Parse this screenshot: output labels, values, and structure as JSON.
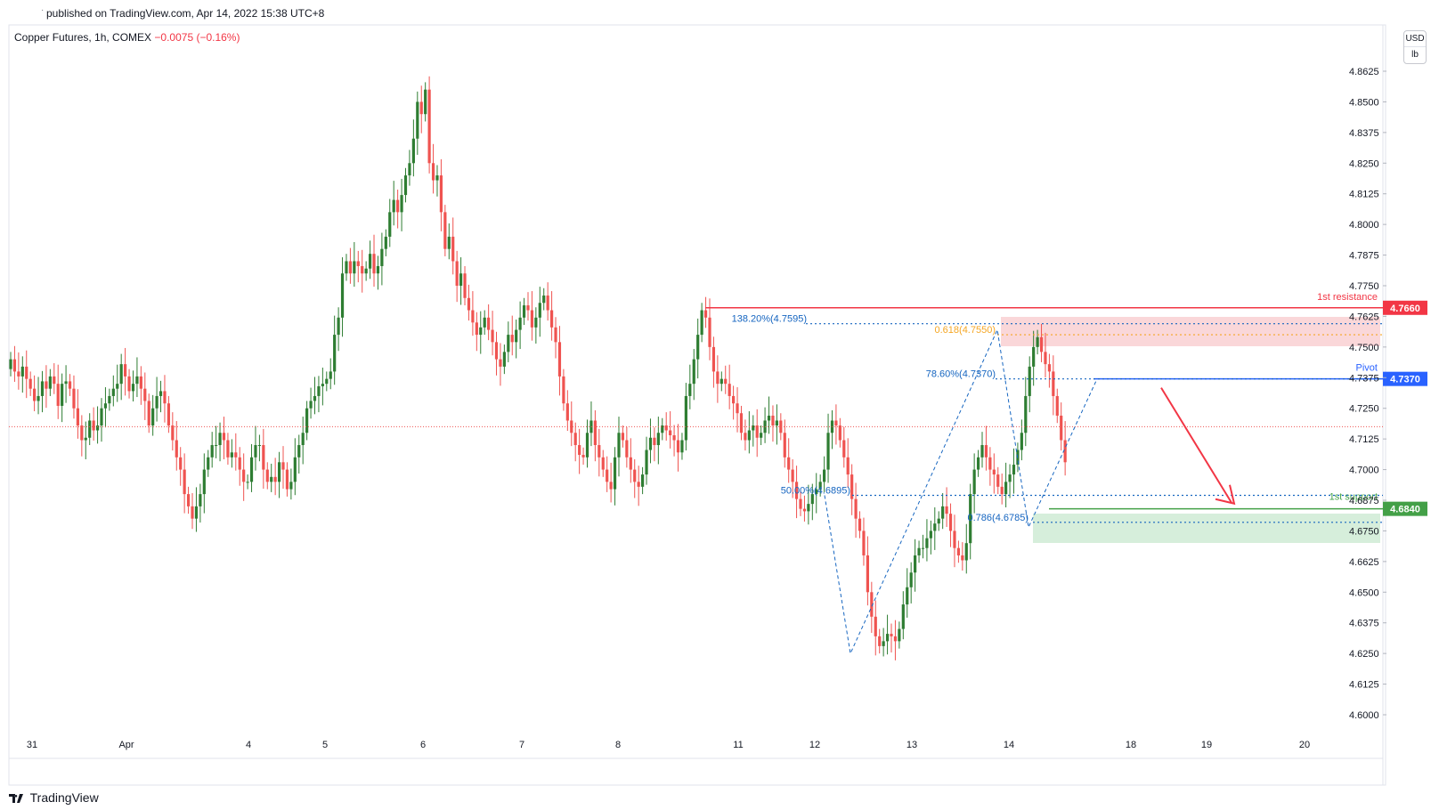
{
  "header": {
    "published": "published on TradingView.com, Apr 14, 2022 15:38 UTC+8",
    "symbol": "Copper Futures, 1h, COMEX",
    "change": "−0.0075 (−0.16%)",
    "unit_top": "USD",
    "unit_bottom": "lb"
  },
  "brand": {
    "name": "TradingView"
  },
  "colors": {
    "up": "#2e7d32",
    "down": "#ef5350",
    "resistance": "#f23645",
    "pivot": "#2962ff",
    "support": "#43a047",
    "fib": "#1565c0",
    "fib_gold": "#f5a623",
    "arrow": "#f23645"
  },
  "chart_data": {
    "type": "candlestick",
    "title": "Copper Futures, 1h, COMEX",
    "x_ticks": [
      {
        "label": "31",
        "pos": 0
      },
      {
        "label": "Apr",
        "pos": 17
      },
      {
        "label": "4",
        "pos": 35
      },
      {
        "label": "5",
        "pos": 46
      },
      {
        "label": "6",
        "pos": 60
      },
      {
        "label": "7",
        "pos": 74
      },
      {
        "label": "8",
        "pos": 88
      },
      {
        "label": "11",
        "pos": 105
      },
      {
        "label": "12",
        "pos": 116
      },
      {
        "label": "13",
        "pos": 130
      },
      {
        "label": "14",
        "pos": 144
      },
      {
        "label": "18",
        "pos": 161
      },
      {
        "label": "19",
        "pos": 172
      },
      {
        "label": "20",
        "pos": 186
      }
    ],
    "y_ticks": [
      "4.8625",
      "4.8500",
      "4.8375",
      "4.8250",
      "4.8125",
      "4.8000",
      "4.7875",
      "4.7750",
      "4.7625",
      "4.7500",
      "4.7375",
      "4.7250",
      "4.7125",
      "4.7000",
      "4.6875",
      "4.6750",
      "4.6625",
      "4.6500",
      "4.6375",
      "4.6250",
      "4.6125",
      "4.6000"
    ],
    "ylim": [
      4.5975,
      4.8775
    ],
    "current_price": 4.7175,
    "closes": [
      4.745,
      4.74,
      4.738,
      4.742,
      4.737,
      4.733,
      4.728,
      4.73,
      4.736,
      4.733,
      4.738,
      4.735,
      4.726,
      4.735,
      4.736,
      4.733,
      4.725,
      4.718,
      4.712,
      4.713,
      4.72,
      4.716,
      4.718,
      4.725,
      4.727,
      4.73,
      4.733,
      4.735,
      4.743,
      4.738,
      4.732,
      4.735,
      4.738,
      4.733,
      4.728,
      4.718,
      4.725,
      4.73,
      4.732,
      4.727,
      4.718,
      4.712,
      4.705,
      4.7,
      4.69,
      4.685,
      4.68,
      4.685,
      4.69,
      4.7,
      4.705,
      4.71,
      4.71,
      4.715,
      4.712,
      4.705,
      4.707,
      4.705,
      4.7,
      4.695,
      4.695,
      4.705,
      4.71,
      4.71,
      4.7,
      4.695,
      4.697,
      4.695,
      4.703,
      4.7,
      4.692,
      4.695,
      4.705,
      4.71,
      4.715,
      4.725,
      4.728,
      4.73,
      4.734,
      4.735,
      4.737,
      4.74,
      4.755,
      4.762,
      4.78,
      4.785,
      4.78,
      4.785,
      4.783,
      4.78,
      4.782,
      4.788,
      4.78,
      4.783,
      4.79,
      4.795,
      4.805,
      4.81,
      4.805,
      4.812,
      4.82,
      4.825,
      4.835,
      4.85,
      4.845,
      4.855,
      4.825,
      4.818,
      4.82,
      4.805,
      4.79,
      4.795,
      4.785,
      4.775,
      4.78,
      4.77,
      4.765,
      4.76,
      4.755,
      4.758,
      4.762,
      4.757,
      4.752,
      4.745,
      4.742,
      4.748,
      4.755,
      4.752,
      4.757,
      4.762,
      4.767,
      4.765,
      4.758,
      4.762,
      4.768,
      4.771,
      4.765,
      4.758,
      4.752,
      4.738,
      4.727,
      4.72,
      4.715,
      4.71,
      4.706,
      4.705,
      4.715,
      4.72,
      4.71,
      4.705,
      4.7,
      4.695,
      4.692,
      4.705,
      4.715,
      4.712,
      4.705,
      4.7,
      4.695,
      4.693,
      4.698,
      4.708,
      4.713,
      4.71,
      4.715,
      4.718,
      4.716,
      4.714,
      4.712,
      4.707,
      4.712,
      4.73,
      4.735,
      4.745,
      4.755,
      4.765,
      4.762,
      4.75,
      4.74,
      4.735,
      4.737,
      4.735,
      4.73,
      4.727,
      4.723,
      4.715,
      4.712,
      4.716,
      4.718,
      4.713,
      4.715,
      4.72,
      4.722,
      4.718,
      4.72,
      4.715,
      4.705,
      4.7,
      4.695,
      4.688,
      4.684,
      4.683,
      4.686,
      4.69,
      4.692,
      4.695,
      4.7,
      4.715,
      4.72,
      4.718,
      4.712,
      4.705,
      4.698,
      4.688,
      4.68,
      4.675,
      4.665,
      4.65,
      4.64,
      4.632,
      4.628,
      4.63,
      4.633,
      4.632,
      4.63,
      4.635,
      4.645,
      4.652,
      4.658,
      4.665,
      4.668,
      4.668,
      4.672,
      4.675,
      4.678,
      4.68,
      4.685,
      4.682,
      4.675,
      4.668,
      4.665,
      4.663,
      4.67,
      4.69,
      4.7,
      4.705,
      4.71,
      4.705,
      4.7,
      4.698,
      4.693,
      4.69,
      4.695,
      4.698,
      4.702,
      4.708,
      4.715,
      4.73,
      4.742,
      4.75,
      4.754,
      4.748,
      4.743,
      4.74,
      4.73,
      4.722,
      4.712,
      4.703,
      4.695,
      4.688,
      4.682,
      4.682,
      4.688,
      4.692,
      4.696,
      4.703,
      4.708,
      4.712,
      4.71,
      4.707,
      4.701,
      4.7,
      4.703,
      4.71,
      4.716,
      4.722,
      4.728,
      4.733,
      4.736,
      4.733,
      4.726,
      4.722
    ]
  },
  "annotations": {
    "resistance": {
      "price": "4.7660",
      "label": "1st resistance"
    },
    "pivot": {
      "price": "4.7370",
      "label": "Pivot"
    },
    "support": {
      "price": "4.6840",
      "label": "1st support"
    },
    "fib_levels": [
      {
        "text": "138.20%(4.7595)",
        "price": 4.7595
      },
      {
        "text": "0.618(4.7550)",
        "price": 4.755
      },
      {
        "text": "78.60%(4.7370)",
        "price": 4.737
      },
      {
        "text": "50.00%(4.6895)",
        "price": 4.6895
      },
      {
        "text": "0.786(4.6785)",
        "price": 4.6785
      }
    ]
  }
}
